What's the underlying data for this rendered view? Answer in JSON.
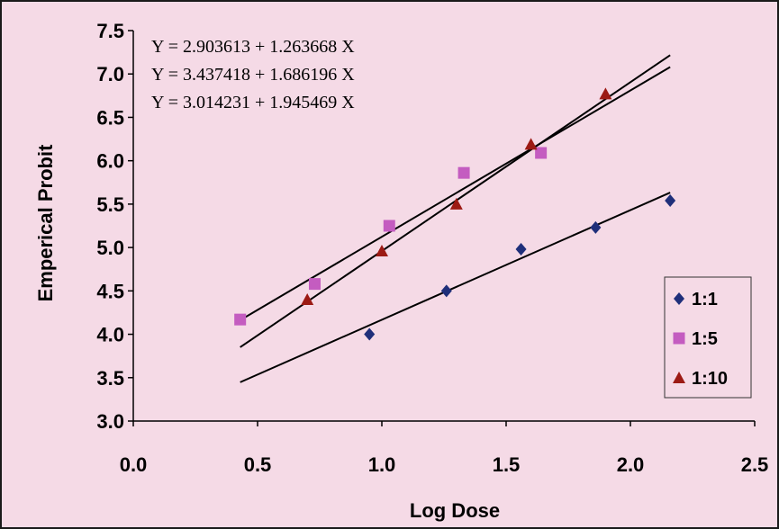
{
  "chart_data": {
    "type": "scatter",
    "xlabel": "Log Dose",
    "ylabel": "Emperical Probit",
    "xlim": [
      0.0,
      2.5
    ],
    "ylim": [
      3.0,
      7.5
    ],
    "x_ticks": [
      "0.0",
      "0.5",
      "1.0",
      "1.5",
      "2.0",
      "2.5"
    ],
    "y_ticks": [
      "3.0",
      "3.5",
      "4.0",
      "4.5",
      "5.0",
      "5.5",
      "6.0",
      "6.5",
      "7.0",
      "7.5"
    ],
    "grid": false,
    "legend_position": "bottom-right",
    "equations": [
      "Y = 2.903613 + 1.263668 X",
      "Y = 3.437418 + 1.686196 X",
      "Y = 3.014231 + 1.945469 X"
    ],
    "series": [
      {
        "name": "1:1",
        "marker": "diamond",
        "color": "#1f2f7a",
        "points": [
          [
            0.95,
            4.0
          ],
          [
            1.26,
            4.5
          ],
          [
            1.56,
            4.98
          ],
          [
            1.86,
            5.23
          ],
          [
            2.16,
            5.54
          ]
        ],
        "fit": {
          "intercept": 2.903613,
          "slope": 1.263668,
          "x_range": [
            0.43,
            2.16
          ]
        }
      },
      {
        "name": "1:5",
        "marker": "square",
        "color": "#c45cc0",
        "points": [
          [
            0.43,
            4.17
          ],
          [
            0.73,
            4.58
          ],
          [
            1.03,
            5.25
          ],
          [
            1.33,
            5.86
          ],
          [
            1.64,
            6.09
          ]
        ],
        "fit": {
          "intercept": 3.437418,
          "slope": 1.686196,
          "x_range": [
            0.43,
            2.16
          ]
        }
      },
      {
        "name": "1:10",
        "marker": "triangle",
        "color": "#9c1a14",
        "points": [
          [
            0.7,
            4.4
          ],
          [
            1.0,
            4.96
          ],
          [
            1.3,
            5.5
          ],
          [
            1.6,
            6.19
          ],
          [
            1.9,
            6.77
          ]
        ],
        "fit": {
          "intercept": 3.014231,
          "slope": 1.945469,
          "x_range": [
            0.43,
            2.16
          ]
        }
      }
    ]
  }
}
